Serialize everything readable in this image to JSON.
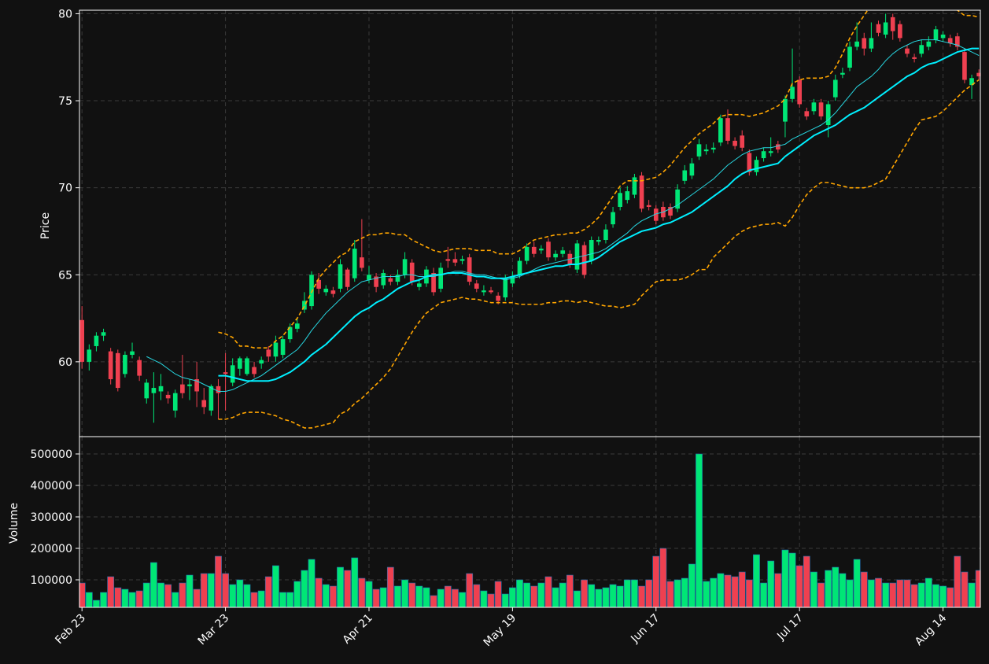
{
  "chart_data": {
    "type": "candlestick",
    "categories": [
      "Feb 23",
      null,
      null,
      null,
      null,
      null,
      null,
      null,
      null,
      null,
      null,
      null,
      null,
      null,
      null,
      null,
      null,
      null,
      null,
      null,
      "Mar 23",
      null,
      null,
      null,
      null,
      null,
      null,
      null,
      null,
      null,
      null,
      null,
      null,
      null,
      null,
      null,
      null,
      null,
      null,
      null,
      "Apr 21",
      null,
      null,
      null,
      null,
      null,
      null,
      null,
      null,
      null,
      null,
      null,
      null,
      null,
      null,
      null,
      null,
      null,
      null,
      null,
      "May 19",
      null,
      null,
      null,
      null,
      null,
      null,
      null,
      null,
      null,
      null,
      null,
      null,
      null,
      null,
      null,
      null,
      null,
      null,
      null,
      "Jun 17",
      null,
      null,
      null,
      null,
      null,
      null,
      null,
      null,
      null,
      null,
      null,
      null,
      null,
      null,
      null,
      null,
      null,
      null,
      null,
      "Jul 17",
      null,
      null,
      null,
      null,
      null,
      null,
      null,
      null,
      null,
      null,
      null,
      null,
      null,
      null,
      null,
      null,
      null,
      null,
      null,
      "Aug 14",
      null,
      null,
      null,
      null,
      null
    ],
    "xlim": [
      -0.35,
      125.2
    ],
    "open": [
      62.4,
      60.0,
      60.9,
      61.5,
      60.6,
      60.5,
      59.3,
      60.4,
      60.1,
      57.9,
      58.2,
      58.3,
      58.1,
      57.2,
      58.7,
      58.6,
      59.0,
      57.8,
      57.2,
      58.6,
      59.4,
      58.8,
      59.6,
      59.3,
      59.7,
      59.9,
      60.7,
      60.3,
      60.4,
      61.3,
      61.9,
      63.0,
      63.2,
      64.7,
      64.0,
      64.1,
      64.2,
      65.3,
      64.8,
      66.0,
      64.7,
      64.9,
      64.4,
      64.8,
      64.6,
      65.0,
      65.7,
      64.3,
      64.5,
      65.1,
      64.2,
      65.9,
      65.9,
      65.8,
      66.0,
      64.5,
      64.0,
      64.1,
      63.8,
      63.7,
      64.5,
      65.0,
      65.8,
      66.6,
      66.4,
      66.9,
      66.0,
      66.2,
      66.2,
      65.3,
      66.7,
      65.8,
      66.9,
      67.0,
      67.9,
      68.9,
      69.3,
      69.6,
      70.7,
      69.0,
      68.8,
      68.9,
      68.9,
      68.8,
      70.4,
      70.7,
      71.8,
      72.1,
      72.2,
      72.6,
      74.0,
      72.7,
      73.0,
      72.0,
      70.9,
      71.7,
      72.0,
      72.5,
      73.8,
      75.1,
      76.2,
      74.4,
      74.4,
      74.9,
      73.6,
      75.2,
      76.5,
      76.9,
      78.1,
      78.6,
      78.0,
      79.4,
      78.8,
      79.8,
      79.4,
      78.0,
      77.5,
      77.7,
      78.1,
      78.5,
      78.6,
      78.6,
      78.7,
      77.8,
      75.9,
      76.6
    ],
    "high": [
      63.2,
      61.0,
      61.7,
      61.9,
      60.8,
      60.7,
      60.6,
      61.1,
      60.3,
      59.0,
      59.4,
      59.3,
      58.3,
      58.4,
      60.4,
      59.0,
      60.0,
      58.5,
      58.7,
      59.0,
      60.5,
      60.2,
      60.3,
      60.3,
      60.0,
      60.3,
      60.9,
      61.5,
      61.5,
      62.2,
      62.5,
      64.0,
      65.2,
      65.1,
      64.4,
      64.3,
      65.9,
      65.4,
      67.0,
      68.2,
      65.5,
      65.1,
      65.3,
      65.0,
      65.3,
      66.3,
      65.9,
      64.8,
      65.5,
      65.4,
      65.7,
      66.6,
      66.3,
      66.1,
      66.2,
      64.7,
      64.4,
      64.3,
      64.0,
      65.0,
      65.2,
      66.0,
      66.8,
      66.9,
      66.7,
      67.1,
      66.4,
      66.6,
      66.4,
      67.0,
      66.9,
      67.2,
      67.2,
      67.9,
      68.9,
      70.0,
      70.1,
      70.8,
      70.9,
      69.3,
      69.0,
      69.2,
      69.1,
      70.2,
      71.3,
      71.7,
      72.8,
      72.5,
      72.6,
      74.2,
      74.5,
      72.9,
      73.3,
      72.2,
      71.8,
      72.3,
      72.9,
      72.7,
      75.3,
      78.0,
      76.4,
      74.6,
      75.1,
      75.1,
      75.0,
      76.5,
      76.9,
      78.4,
      79.5,
      78.9,
      79.5,
      79.6,
      80.0,
      80.0,
      79.6,
      78.2,
      77.7,
      78.5,
      78.7,
      79.3,
      79.0,
      78.8,
      78.9,
      78.0,
      76.5,
      76.8
    ],
    "low": [
      59.6,
      59.5,
      60.6,
      61.2,
      58.7,
      58.3,
      59.1,
      60.2,
      58.9,
      57.6,
      56.5,
      57.8,
      57.6,
      56.8,
      57.9,
      57.8,
      57.4,
      57.0,
      56.9,
      56.7,
      57.2,
      58.6,
      59.2,
      59.2,
      59.1,
      59.6,
      60.0,
      60.0,
      60.2,
      61.1,
      61.7,
      62.8,
      63.0,
      63.9,
      63.8,
      63.7,
      64.0,
      64.1,
      64.6,
      65.2,
      64.5,
      64.0,
      64.2,
      64.4,
      64.4,
      64.8,
      64.4,
      64.1,
      64.3,
      63.8,
      64.0,
      65.4,
      65.5,
      65.6,
      64.4,
      64.0,
      63.8,
      63.9,
      63.3,
      63.5,
      64.3,
      64.8,
      65.6,
      66.0,
      66.2,
      65.8,
      65.8,
      66.0,
      65.4,
      65.1,
      64.8,
      65.6,
      66.7,
      66.8,
      67.7,
      68.7,
      69.1,
      69.4,
      68.6,
      68.7,
      67.9,
      68.1,
      68.2,
      68.6,
      70.2,
      70.5,
      71.6,
      71.9,
      72.0,
      72.4,
      72.5,
      72.2,
      72.1,
      70.7,
      70.7,
      71.5,
      71.8,
      72.0,
      72.9,
      74.9,
      74.6,
      73.9,
      74.2,
      73.9,
      72.9,
      75.0,
      76.3,
      76.7,
      77.9,
      77.6,
      77.8,
      78.7,
      78.6,
      78.5,
      78.4,
      77.5,
      77.2,
      77.5,
      77.9,
      78.3,
      78.4,
      78.1,
      77.9,
      76.0,
      75.1,
      76.2
    ],
    "close": [
      60.0,
      60.7,
      61.5,
      61.7,
      59.0,
      58.5,
      60.4,
      60.6,
      59.2,
      58.8,
      58.5,
      58.6,
      57.9,
      58.2,
      58.2,
      58.7,
      58.3,
      57.4,
      58.6,
      58.2,
      59.3,
      59.8,
      60.2,
      60.2,
      59.3,
      60.1,
      60.3,
      61.1,
      61.3,
      62.0,
      62.2,
      63.5,
      65.0,
      64.2,
      64.2,
      63.9,
      65.6,
      64.3,
      66.5,
      65.4,
      65.0,
      64.3,
      65.1,
      64.6,
      65.0,
      65.9,
      64.6,
      64.5,
      65.3,
      64.0,
      65.4,
      65.8,
      65.7,
      65.9,
      64.6,
      64.2,
      64.1,
      64.0,
      63.5,
      64.8,
      64.9,
      65.8,
      66.6,
      66.2,
      66.5,
      66.0,
      66.2,
      66.4,
      65.6,
      66.8,
      65.0,
      67.0,
      67.0,
      67.6,
      68.6,
      69.7,
      69.8,
      70.6,
      68.8,
      68.9,
      68.1,
      68.3,
      68.4,
      69.9,
      71.0,
      71.4,
      72.5,
      72.2,
      72.3,
      74.0,
      72.7,
      72.4,
      72.3,
      70.9,
      71.6,
      72.1,
      72.1,
      72.2,
      75.1,
      75.8,
      74.8,
      74.1,
      74.9,
      74.1,
      74.8,
      76.2,
      76.6,
      78.1,
      78.4,
      78.0,
      78.6,
      78.9,
      79.5,
      79.0,
      78.6,
      77.7,
      77.4,
      78.2,
      78.4,
      79.1,
      78.8,
      78.3,
      78.1,
      76.2,
      76.3,
      76.4
    ],
    "up_color": "#00e676",
    "down_color": "#ef4050",
    "ylabel": "Price",
    "ylim": [
      55.7,
      80.2
    ],
    "yticks": [
      60,
      65,
      70,
      75,
      80
    ],
    "grid": true,
    "overlays": [
      {
        "color": "#27d6e0",
        "linestyle": "solid",
        "values": [
          null,
          null,
          null,
          null,
          null,
          null,
          null,
          null,
          null,
          60.3,
          60.1,
          59.9,
          59.6,
          59.3,
          59.1,
          59.0,
          58.9,
          58.7,
          58.5,
          58.3,
          58.3,
          58.4,
          58.6,
          58.8,
          59.0,
          59.2,
          59.5,
          59.8,
          60.1,
          60.4,
          60.7,
          61.2,
          61.8,
          62.3,
          62.8,
          63.2,
          63.6,
          64.0,
          64.3,
          64.6,
          64.7,
          64.8,
          64.9,
          64.9,
          64.9,
          65.0,
          65.0,
          64.9,
          64.9,
          64.9,
          65.0,
          65.1,
          65.2,
          65.2,
          65.1,
          65.0,
          65.0,
          64.9,
          64.8,
          64.7,
          64.8,
          64.9,
          65.1,
          65.3,
          65.5,
          65.6,
          65.7,
          65.8,
          65.9,
          66.0,
          66.1,
          66.2,
          66.3,
          66.5,
          66.8,
          67.1,
          67.4,
          67.8,
          68.1,
          68.3,
          68.5,
          68.6,
          68.8,
          69.0,
          69.3,
          69.6,
          69.9,
          70.2,
          70.5,
          70.9,
          71.3,
          71.6,
          71.9,
          72.1,
          72.2,
          72.3,
          72.3,
          72.4,
          72.5,
          72.8,
          73.0,
          73.2,
          73.4,
          73.6,
          73.9,
          74.3,
          74.8,
          75.3,
          75.8,
          76.1,
          76.4,
          76.8,
          77.3,
          77.7,
          78.0,
          78.2,
          78.4,
          78.5,
          78.5,
          78.5,
          78.4,
          78.3,
          78.2,
          78.0,
          77.8,
          77.6
        ]
      },
      {
        "color": "#00f0ff",
        "linestyle": "solid",
        "values": [
          null,
          null,
          null,
          null,
          null,
          null,
          null,
          null,
          null,
          null,
          null,
          null,
          null,
          null,
          null,
          null,
          null,
          null,
          null,
          59.2,
          59.2,
          59.1,
          59.0,
          58.9,
          58.9,
          58.9,
          58.9,
          59.0,
          59.2,
          59.4,
          59.7,
          60.0,
          60.4,
          60.7,
          61.0,
          61.4,
          61.8,
          62.2,
          62.6,
          62.9,
          63.1,
          63.4,
          63.6,
          63.9,
          64.2,
          64.4,
          64.6,
          64.7,
          64.9,
          65.0,
          65.0,
          65.1,
          65.1,
          65.1,
          65.0,
          64.9,
          64.9,
          64.8,
          64.8,
          64.8,
          64.9,
          65.0,
          65.1,
          65.2,
          65.3,
          65.4,
          65.5,
          65.5,
          65.6,
          65.6,
          65.7,
          65.8,
          66.0,
          66.3,
          66.6,
          66.9,
          67.1,
          67.3,
          67.5,
          67.6,
          67.7,
          67.9,
          68.0,
          68.2,
          68.4,
          68.6,
          68.9,
          69.2,
          69.5,
          69.8,
          70.1,
          70.5,
          70.8,
          71.0,
          71.1,
          71.2,
          71.3,
          71.4,
          71.8,
          72.1,
          72.4,
          72.7,
          73.0,
          73.2,
          73.4,
          73.6,
          73.9,
          74.2,
          74.4,
          74.6,
          74.9,
          75.2,
          75.5,
          75.8,
          76.1,
          76.4,
          76.6,
          76.9,
          77.1,
          77.2,
          77.4,
          77.6,
          77.8,
          77.9,
          78.0,
          78.0
        ]
      },
      {
        "color": "#ffa500",
        "linestyle": "dashed",
        "values": [
          null,
          null,
          null,
          null,
          null,
          null,
          null,
          null,
          null,
          null,
          null,
          null,
          null,
          null,
          null,
          null,
          null,
          null,
          null,
          61.7,
          61.6,
          61.4,
          60.9,
          60.9,
          60.8,
          60.8,
          60.8,
          61.2,
          61.5,
          62.0,
          62.5,
          63.2,
          64.0,
          64.8,
          65.3,
          65.7,
          66.1,
          66.3,
          66.9,
          67.1,
          67.3,
          67.3,
          67.4,
          67.4,
          67.3,
          67.3,
          67.0,
          66.8,
          66.6,
          66.4,
          66.3,
          66.4,
          66.5,
          66.5,
          66.5,
          66.4,
          66.4,
          66.4,
          66.2,
          66.2,
          66.2,
          66.4,
          66.7,
          67.0,
          67.1,
          67.2,
          67.3,
          67.3,
          67.4,
          67.4,
          67.6,
          67.9,
          68.3,
          68.9,
          69.5,
          70.1,
          70.4,
          70.4,
          70.4,
          70.5,
          70.6,
          70.9,
          71.3,
          71.8,
          72.3,
          72.7,
          73.1,
          73.4,
          73.7,
          74.1,
          74.2,
          74.2,
          74.2,
          74.1,
          74.2,
          74.3,
          74.5,
          74.7,
          75.1,
          76.0,
          76.2,
          76.3,
          76.3,
          76.3,
          76.4,
          76.9,
          77.7,
          78.6,
          79.3,
          79.9,
          80.5,
          81.0,
          81.5,
          81.8,
          81.8,
          81.8,
          81.7,
          81.4,
          81.2,
          81.0,
          80.8,
          80.5,
          80.2,
          79.9,
          79.9,
          79.8
        ]
      },
      {
        "color": "#ffa500",
        "linestyle": "dashed",
        "values": [
          null,
          null,
          null,
          null,
          null,
          null,
          null,
          null,
          null,
          null,
          null,
          null,
          null,
          null,
          null,
          null,
          null,
          null,
          null,
          56.7,
          56.7,
          56.8,
          57.0,
          57.1,
          57.1,
          57.1,
          57.0,
          56.9,
          56.7,
          56.6,
          56.4,
          56.2,
          56.2,
          56.3,
          56.4,
          56.5,
          57.0,
          57.2,
          57.6,
          57.9,
          58.3,
          58.7,
          59.1,
          59.6,
          60.3,
          61.0,
          61.7,
          62.3,
          62.8,
          63.1,
          63.4,
          63.5,
          63.6,
          63.7,
          63.6,
          63.6,
          63.5,
          63.4,
          63.4,
          63.4,
          63.4,
          63.3,
          63.3,
          63.3,
          63.3,
          63.4,
          63.4,
          63.5,
          63.5,
          63.4,
          63.5,
          63.4,
          63.3,
          63.2,
          63.2,
          63.1,
          63.2,
          63.3,
          63.8,
          64.2,
          64.6,
          64.7,
          64.7,
          64.7,
          64.8,
          65.0,
          65.3,
          65.3,
          66.0,
          66.4,
          66.8,
          67.2,
          67.5,
          67.7,
          67.8,
          67.9,
          67.9,
          68.0,
          67.8,
          68.3,
          69.0,
          69.6,
          70.0,
          70.3,
          70.3,
          70.2,
          70.1,
          70.0,
          70.0,
          70.0,
          70.1,
          70.3,
          70.5,
          71.2,
          71.9,
          72.6,
          73.3,
          73.9,
          74.0,
          74.1,
          74.4,
          74.8,
          75.2,
          75.6,
          75.9,
          76.2
        ]
      }
    ],
    "volume": {
      "ylabel": "Volume",
      "ylim": [
        12500,
        555000
      ],
      "yticks": [
        100000,
        200000,
        300000,
        400000,
        500000
      ],
      "values": [
        90000,
        60000,
        35000,
        60000,
        110000,
        75000,
        70000,
        60000,
        65000,
        90000,
        155000,
        90000,
        85000,
        60000,
        90000,
        115000,
        70000,
        120000,
        120000,
        175000,
        120000,
        85000,
        100000,
        85000,
        60000,
        65000,
        110000,
        145000,
        60000,
        60000,
        95000,
        130000,
        165000,
        105000,
        85000,
        80000,
        140000,
        130000,
        170000,
        105000,
        95000,
        70000,
        75000,
        140000,
        80000,
        100000,
        90000,
        80000,
        75000,
        50000,
        70000,
        80000,
        70000,
        60000,
        120000,
        85000,
        65000,
        55000,
        95000,
        55000,
        75000,
        100000,
        90000,
        80000,
        90000,
        110000,
        75000,
        90000,
        115000,
        65000,
        100000,
        85000,
        70000,
        75000,
        85000,
        80000,
        100000,
        100000,
        80000,
        100000,
        175000,
        200000,
        95000,
        100000,
        105000,
        150000,
        500000,
        95000,
        105000,
        120000,
        115000,
        110000,
        125000,
        100000,
        180000,
        90000,
        160000,
        120000,
        195000,
        185000,
        145000,
        175000,
        125000,
        90000,
        130000,
        140000,
        120000,
        100000,
        165000,
        125000,
        100000,
        105000,
        90000,
        90000,
        100000,
        100000,
        85000,
        90000,
        105000,
        85000,
        80000,
        75000,
        175000,
        125000,
        90000,
        130000
      ]
    }
  }
}
